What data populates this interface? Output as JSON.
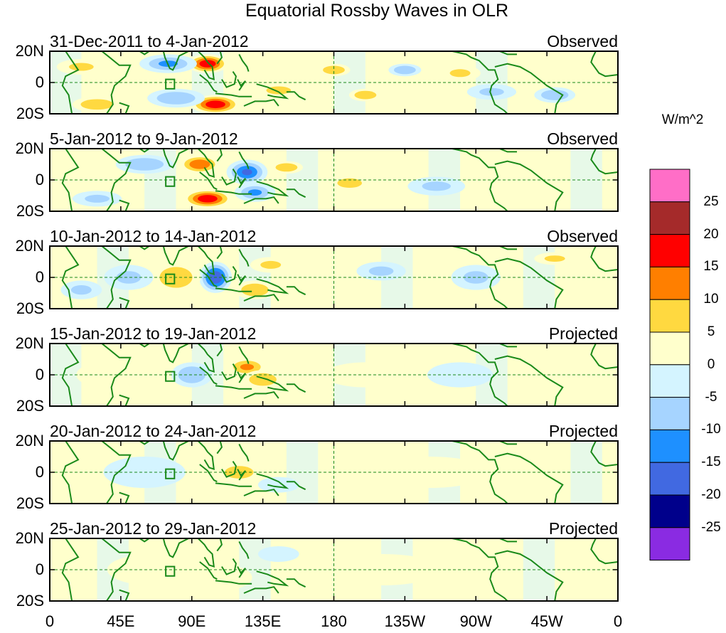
{
  "chart_data": {
    "type": "heatmap",
    "title": "Equatorial Rossby Waves in OLR",
    "variable": "OLR anomaly",
    "units": "W/m^2",
    "x_ticks": [
      "0",
      "45E",
      "90E",
      "135E",
      "180",
      "135W",
      "90W",
      "45W",
      "0"
    ],
    "x_range_deg_east": [
      0,
      360
    ],
    "y_ticks": [
      "20N",
      "0",
      "20S"
    ],
    "y_range_deg": [
      -20,
      20
    ],
    "colorbar": {
      "levels": [
        "25",
        "20",
        "15",
        "10",
        "5",
        "0",
        "-5",
        "-10",
        "-15",
        "-20",
        "-25"
      ],
      "colors": [
        "#ff6ec7",
        "#a52a2a",
        "#ff0000",
        "#ff7f00",
        "#ffd940",
        "#ffffcc",
        "#d4f4ff",
        "#a6d4ff",
        "#1e90ff",
        "#4169e1",
        "#00008b",
        "#8a2be2"
      ]
    },
    "panels": [
      {
        "period": "31-Dec-2011 to 4-Jan-2012",
        "status": "Observed",
        "blobs": [
          {
            "lon": 100,
            "lat": 12,
            "value": 18,
            "lon_w": 10,
            "lat_w": 6
          },
          {
            "lon": 105,
            "lat": -14,
            "value": 20,
            "lon_w": 12,
            "lat_w": 6
          },
          {
            "lon": 75,
            "lat": 12,
            "value": -12,
            "lon_w": 14,
            "lat_w": 6
          },
          {
            "lon": 80,
            "lat": -10,
            "value": -10,
            "lon_w": 14,
            "lat_w": 6
          },
          {
            "lon": 20,
            "lat": 10,
            "value": 6,
            "lon_w": 12,
            "lat_w": 5
          },
          {
            "lon": 30,
            "lat": -14,
            "value": 10,
            "lon_w": 12,
            "lat_w": 5
          },
          {
            "lon": 145,
            "lat": -5,
            "value": 6,
            "lon_w": 12,
            "lat_w": 5
          },
          {
            "lon": 180,
            "lat": 8,
            "value": 8,
            "lon_w": 8,
            "lat_w": 4
          },
          {
            "lon": 200,
            "lat": -8,
            "value": 9,
            "lon_w": 8,
            "lat_w": 4
          },
          {
            "lon": 225,
            "lat": 8,
            "value": -10,
            "lon_w": 8,
            "lat_w": 4
          },
          {
            "lon": 260,
            "lat": 6,
            "value": 6,
            "lon_w": 10,
            "lat_w": 5
          },
          {
            "lon": 280,
            "lat": -6,
            "value": -6,
            "lon_w": 12,
            "lat_w": 5
          },
          {
            "lon": 320,
            "lat": -8,
            "value": -8,
            "lon_w": 10,
            "lat_w": 5
          }
        ]
      },
      {
        "period": "5-Jan-2012 to 9-Jan-2012",
        "status": "Observed",
        "blobs": [
          {
            "lon": 95,
            "lat": 10,
            "value": 14,
            "lon_w": 10,
            "lat_w": 6
          },
          {
            "lon": 100,
            "lat": -12,
            "value": 18,
            "lon_w": 12,
            "lat_w": 6
          },
          {
            "lon": 125,
            "lat": 5,
            "value": -16,
            "lon_w": 10,
            "lat_w": 8
          },
          {
            "lon": 130,
            "lat": -8,
            "value": -12,
            "lon_w": 10,
            "lat_w": 6
          },
          {
            "lon": 60,
            "lat": 10,
            "value": -8,
            "lon_w": 14,
            "lat_w": 6
          },
          {
            "lon": 30,
            "lat": -12,
            "value": -6,
            "lon_w": 12,
            "lat_w": 5
          },
          {
            "lon": 150,
            "lat": 8,
            "value": 10,
            "lon_w": 8,
            "lat_w": 4
          },
          {
            "lon": 190,
            "lat": -2,
            "value": 6,
            "lon_w": 12,
            "lat_w": 6
          },
          {
            "lon": 245,
            "lat": -4,
            "value": -6,
            "lon_w": 14,
            "lat_w": 6
          },
          {
            "lon": 300,
            "lat": 8,
            "value": 4,
            "lon_w": 14,
            "lat_w": 5
          }
        ]
      },
      {
        "period": "10-Jan-2012 to 14-Jan-2012",
        "status": "Observed",
        "blobs": [
          {
            "lon": 105,
            "lat": 0,
            "value": -20,
            "lon_w": 8,
            "lat_w": 10
          },
          {
            "lon": 80,
            "lat": 0,
            "value": 10,
            "lon_w": 12,
            "lat_w": 10
          },
          {
            "lon": 130,
            "lat": -8,
            "value": 10,
            "lon_w": 10,
            "lat_w": 6
          },
          {
            "lon": 140,
            "lat": 8,
            "value": 6,
            "lon_w": 10,
            "lat_w": 5
          },
          {
            "lon": 50,
            "lat": 0,
            "value": -6,
            "lon_w": 12,
            "lat_w": 8
          },
          {
            "lon": 20,
            "lat": -8,
            "value": -6,
            "lon_w": 10,
            "lat_w": 6
          },
          {
            "lon": 210,
            "lat": 4,
            "value": -6,
            "lon_w": 12,
            "lat_w": 6
          },
          {
            "lon": 270,
            "lat": 0,
            "value": -6,
            "lon_w": 12,
            "lat_w": 8
          },
          {
            "lon": 320,
            "lat": 12,
            "value": 6,
            "lon_w": 10,
            "lat_w": 4
          }
        ]
      },
      {
        "period": "15-Jan-2012 to 19-Jan-2012",
        "status": "Projected",
        "blobs": [
          {
            "lon": 125,
            "lat": 5,
            "value": 12,
            "lon_w": 10,
            "lat_w": 6
          },
          {
            "lon": 135,
            "lat": -3,
            "value": 8,
            "lon_w": 10,
            "lat_w": 6
          },
          {
            "lon": 90,
            "lat": 0,
            "value": -10,
            "lon_w": 10,
            "lat_w": 8
          },
          {
            "lon": 35,
            "lat": 0,
            "value": 4,
            "lon_w": 14,
            "lat_w": 8
          },
          {
            "lon": 200,
            "lat": 0,
            "value": 2,
            "lon_w": 20,
            "lat_w": 8
          },
          {
            "lon": 260,
            "lat": 0,
            "value": -3,
            "lon_w": 16,
            "lat_w": 8
          }
        ]
      },
      {
        "period": "20-Jan-2012 to 24-Jan-2012",
        "status": "Projected",
        "blobs": [
          {
            "lon": 120,
            "lat": 0,
            "value": 6,
            "lon_w": 14,
            "lat_w": 8
          },
          {
            "lon": 145,
            "lat": -8,
            "value": -4,
            "lon_w": 10,
            "lat_w": 5
          },
          {
            "lon": 60,
            "lat": 0,
            "value": -2,
            "lon_w": 20,
            "lat_w": 10
          },
          {
            "lon": 240,
            "lat": 0,
            "value": 2,
            "lon_w": 30,
            "lat_w": 10
          }
        ]
      },
      {
        "period": "25-Jan-2012 to 29-Jan-2012",
        "status": "Projected",
        "blobs": [
          {
            "lon": 145,
            "lat": 10,
            "value": -4,
            "lon_w": 10,
            "lat_w": 5
          },
          {
            "lon": 65,
            "lat": 0,
            "value": 2,
            "lon_w": 22,
            "lat_w": 10
          },
          {
            "lon": 110,
            "lat": -5,
            "value": 2,
            "lon_w": 14,
            "lat_w": 8
          },
          {
            "lon": 210,
            "lat": 0,
            "value": 2,
            "lon_w": 30,
            "lat_w": 10
          }
        ]
      }
    ],
    "annotations": [
      "180E dashed meridian",
      "equator dashed line",
      "box marker near 75E 0"
    ]
  }
}
